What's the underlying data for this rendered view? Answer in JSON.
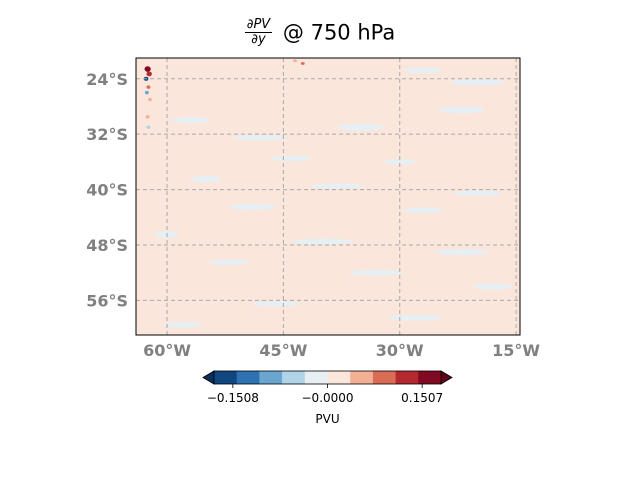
{
  "chart_data": {
    "type": "heatmap",
    "title": {
      "numerator": "∂PV",
      "denominator": "∂y",
      "suffix": "@ 750 hPa"
    },
    "projection": "PlateCarree",
    "lon_range": [
      -64,
      -14.5
    ],
    "lat_range": [
      -61,
      -21
    ],
    "lat_ticks": [
      {
        "value": -24,
        "label": "24°S"
      },
      {
        "value": -32,
        "label": "32°S"
      },
      {
        "value": -40,
        "label": "40°S"
      },
      {
        "value": -48,
        "label": "48°S"
      },
      {
        "value": -56,
        "label": "56°S"
      }
    ],
    "lon_ticks": [
      {
        "value": -60,
        "label": "60°W"
      },
      {
        "value": -45,
        "label": "45°W"
      },
      {
        "value": -30,
        "label": "30°W"
      },
      {
        "value": -15,
        "label": "15°W"
      }
    ],
    "grid": true,
    "background_level_color": "#fbe6dc",
    "colorbar": {
      "orientation": "horizontal",
      "extend": "both",
      "label": "PVU",
      "tick_values": [
        -0.1508,
        0,
        0.1507
      ],
      "tick_labels": [
        "−0.1508",
        "−0.0000",
        "0.1507"
      ],
      "colors": [
        "#114781",
        "#2f72b1",
        "#6aa6cf",
        "#b0d3e7",
        "#e5eff4",
        "#fbe6dc",
        "#f4b094",
        "#da6b54",
        "#b42830",
        "#7f0a21"
      ],
      "under_color": "#0a2f5c",
      "over_color": "#5e0318"
    },
    "patches": [
      {
        "lon": -57.0,
        "lat": -30.0,
        "w": 5.0,
        "h": 0.9,
        "level": 4
      },
      {
        "lon": -48.0,
        "lat": -32.5,
        "w": 7.0,
        "h": 0.8,
        "level": 4
      },
      {
        "lon": -35.0,
        "lat": -31.0,
        "w": 6.0,
        "h": 1.0,
        "level": 4
      },
      {
        "lon": -22.0,
        "lat": -28.5,
        "w": 6.0,
        "h": 1.0,
        "level": 4
      },
      {
        "lon": -20.0,
        "lat": -24.5,
        "w": 7.0,
        "h": 0.9,
        "level": 4
      },
      {
        "lon": -27.0,
        "lat": -22.8,
        "w": 5.0,
        "h": 0.8,
        "level": 4
      },
      {
        "lon": -44.0,
        "lat": -35.5,
        "w": 5.0,
        "h": 0.8,
        "level": 4
      },
      {
        "lon": -30.0,
        "lat": -36.0,
        "w": 4.0,
        "h": 0.8,
        "level": 4
      },
      {
        "lon": -55.0,
        "lat": -38.5,
        "w": 4.0,
        "h": 0.9,
        "level": 4
      },
      {
        "lon": -38.0,
        "lat": -39.5,
        "w": 7.0,
        "h": 0.8,
        "level": 4
      },
      {
        "lon": -20.0,
        "lat": -40.5,
        "w": 6.0,
        "h": 0.8,
        "level": 4
      },
      {
        "lon": -49.0,
        "lat": -42.5,
        "w": 6.0,
        "h": 0.9,
        "level": 4
      },
      {
        "lon": -27.0,
        "lat": -43.0,
        "w": 5.0,
        "h": 0.8,
        "level": 4
      },
      {
        "lon": -60.0,
        "lat": -46.5,
        "w": 3.0,
        "h": 1.0,
        "level": 4
      },
      {
        "lon": -40.0,
        "lat": -47.5,
        "w": 8.0,
        "h": 0.8,
        "level": 4
      },
      {
        "lon": -22.0,
        "lat": -49.0,
        "w": 7.0,
        "h": 0.9,
        "level": 4
      },
      {
        "lon": -52.0,
        "lat": -50.5,
        "w": 5.0,
        "h": 0.8,
        "level": 4
      },
      {
        "lon": -33.0,
        "lat": -52.0,
        "w": 7.0,
        "h": 0.8,
        "level": 4
      },
      {
        "lon": -18.0,
        "lat": -54.0,
        "w": 5.0,
        "h": 0.9,
        "level": 4
      },
      {
        "lon": -46.0,
        "lat": -56.5,
        "w": 6.0,
        "h": 0.8,
        "level": 4
      },
      {
        "lon": -28.0,
        "lat": -58.5,
        "w": 7.0,
        "h": 0.8,
        "level": 4
      },
      {
        "lon": -58.0,
        "lat": -59.5,
        "w": 5.0,
        "h": 0.8,
        "level": 4
      },
      {
        "lon": -62.5,
        "lat": -22.6,
        "w": 0.8,
        "h": 0.8,
        "level": 9
      },
      {
        "lon": -62.3,
        "lat": -23.3,
        "w": 0.7,
        "h": 0.7,
        "level": 8
      },
      {
        "lon": -62.7,
        "lat": -24.0,
        "w": 0.6,
        "h": 0.6,
        "level": 0
      },
      {
        "lon": -62.4,
        "lat": -25.2,
        "w": 0.5,
        "h": 0.5,
        "level": 7
      },
      {
        "lon": -62.6,
        "lat": -26.0,
        "w": 0.5,
        "h": 0.5,
        "level": 2
      },
      {
        "lon": -62.2,
        "lat": -27.0,
        "w": 0.5,
        "h": 0.5,
        "level": 6
      },
      {
        "lon": -62.5,
        "lat": -29.5,
        "w": 0.5,
        "h": 0.5,
        "level": 6
      },
      {
        "lon": -62.4,
        "lat": -31.0,
        "w": 0.5,
        "h": 0.5,
        "level": 3
      },
      {
        "lon": -43.5,
        "lat": -21.4,
        "w": 0.5,
        "h": 0.4,
        "level": 6
      },
      {
        "lon": -42.5,
        "lat": -21.8,
        "w": 0.5,
        "h": 0.4,
        "level": 7
      }
    ]
  }
}
